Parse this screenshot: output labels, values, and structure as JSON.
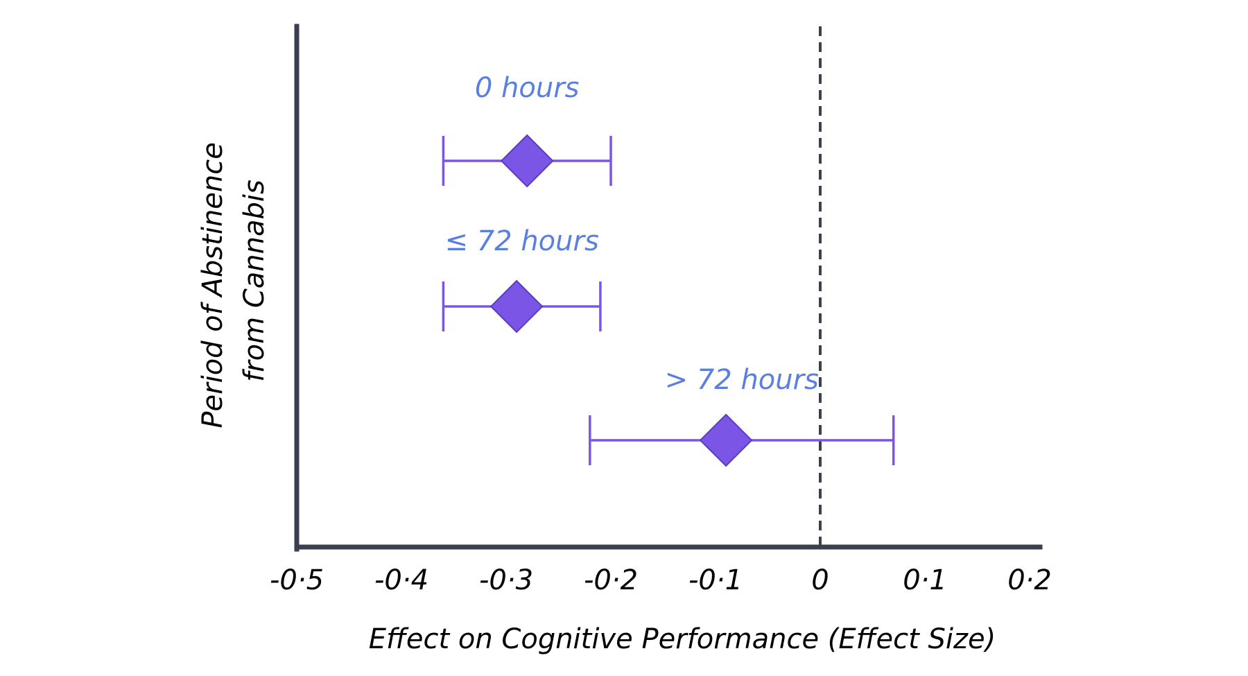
{
  "chart_data": {
    "type": "forest",
    "xlabel": "Effect on Cognitive Performance (Effect Size)",
    "ylabel_lines": [
      "Period of Abstinence",
      "from Cannabis"
    ],
    "xlim": [
      -0.5,
      0.2
    ],
    "xticks": [
      -0.5,
      -0.4,
      -0.3,
      -0.2,
      -0.1,
      0,
      0.1,
      0.2
    ],
    "xtick_labels": [
      "-0·5",
      "-0·4",
      "-0·3",
      "-0·2",
      "-0·1",
      "0",
      "0·1",
      "0·2"
    ],
    "reference_line": 0,
    "groups": [
      {
        "label": "0 hours",
        "estimate": -0.28,
        "ci_low": -0.36,
        "ci_high": -0.2
      },
      {
        "label": "≤ 72 hours",
        "estimate": -0.29,
        "ci_low": -0.36,
        "ci_high": -0.21
      },
      {
        "label": "> 72 hours",
        "estimate": -0.09,
        "ci_low": -0.22,
        "ci_high": 0.07
      }
    ]
  },
  "colors": {
    "axis": "#3b3f4f",
    "marker_fill": "#7b55e6",
    "marker_stroke": "#5a3cc0",
    "ci_line": "#7b55e6",
    "label": "#5a7fe0",
    "reference_line": "#3b3f4f"
  }
}
